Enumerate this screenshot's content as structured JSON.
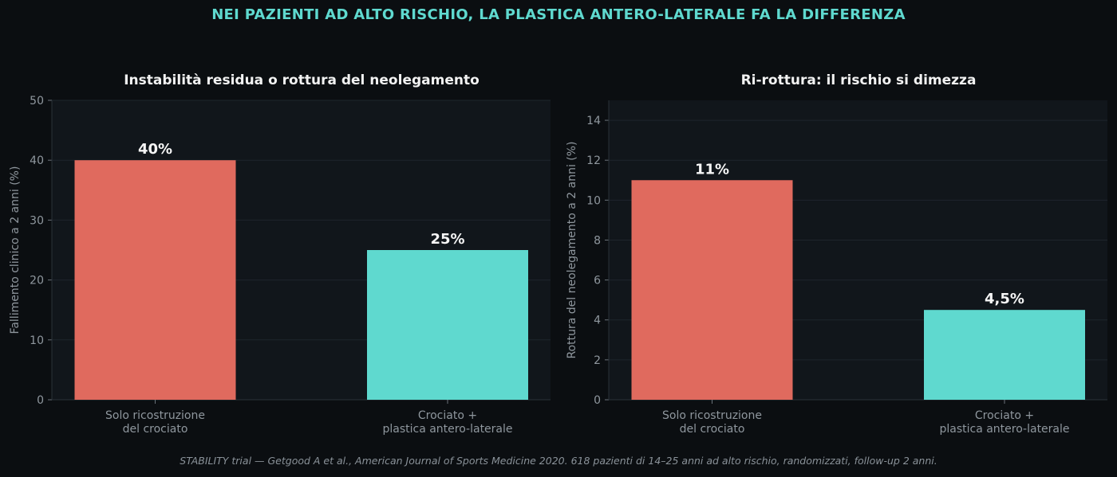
{
  "suptitle": "NEI PAZIENTI AD ALTO RISCHIO, LA PLASTICA ANTERO-LATERALE FA LA DIFFERENZA",
  "footnote": "STABILITY trial — Getgood A et al., American Journal of Sports Medicine 2020. 618 pazienti di 14–25 anni ad alto rischio, randomizzati, follow-up 2 anni.",
  "colors": {
    "accent": "#5fd9cf",
    "bar_standard": "#e06a5e",
    "bar_combined": "#5fd9cf",
    "panel_bg": "#11161b",
    "page_bg": "#0b0e11"
  },
  "chart_data": [
    {
      "type": "bar",
      "title": "Instabilità residua o rottura del neolegamento",
      "ylabel": "Fallimento clinico a 2 anni (%)",
      "xlabel": "",
      "categories": [
        "Solo ricostruzione\ndel crociato",
        "Crociato +\nplastica antero-laterale"
      ],
      "values": [
        40,
        25
      ],
      "value_labels": [
        "40%",
        "25%"
      ],
      "ylim": [
        0,
        50
      ],
      "yticks": [
        0,
        10,
        20,
        30,
        40,
        50
      ],
      "grid": true
    },
    {
      "type": "bar",
      "title": "Ri-rottura: il rischio si dimezza",
      "ylabel": "Rottura del neolegamento a 2 anni (%)",
      "xlabel": "",
      "categories": [
        "Solo ricostruzione\ndel crociato",
        "Crociato +\nplastica antero-laterale"
      ],
      "values": [
        11,
        4.5
      ],
      "value_labels": [
        "11%",
        "4,5%"
      ],
      "ylim": [
        0,
        15
      ],
      "yticks": [
        0,
        2,
        4,
        6,
        8,
        10,
        12,
        14
      ],
      "grid": true
    }
  ]
}
